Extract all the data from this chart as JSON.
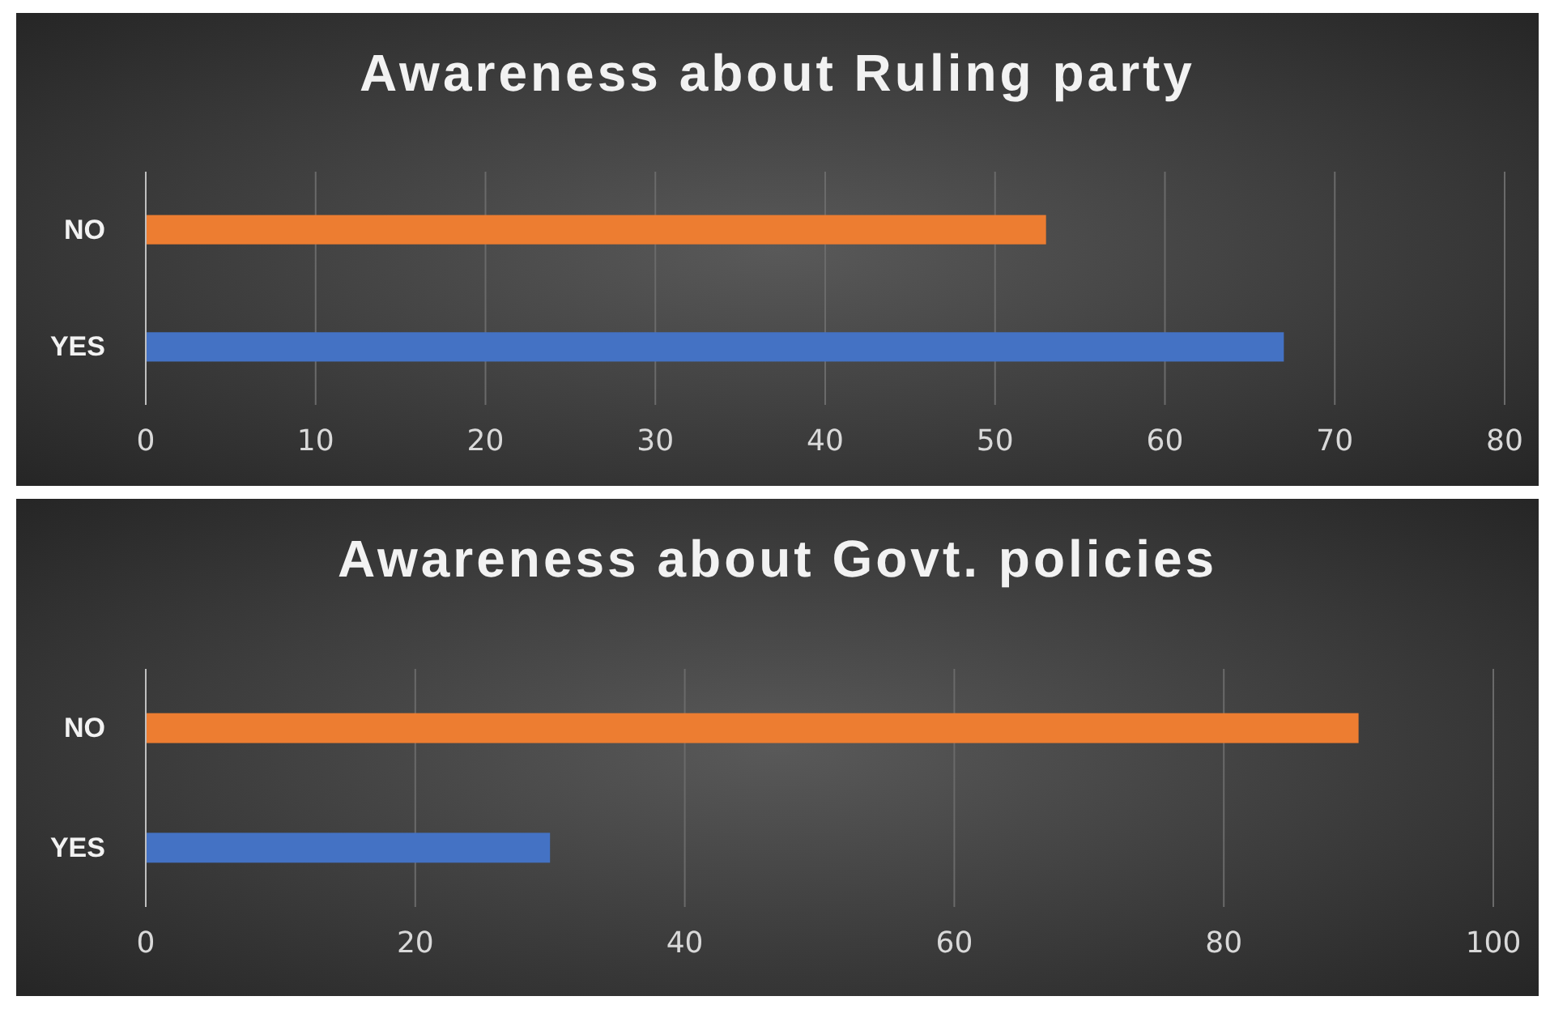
{
  "chart_data": [
    {
      "type": "bar",
      "orientation": "horizontal",
      "title": "Awareness about Ruling party",
      "categories": [
        "NO",
        "YES"
      ],
      "values": [
        53,
        67
      ],
      "colors": [
        "#ed7d31",
        "#4472c4"
      ],
      "xlim": [
        0,
        80
      ],
      "xticks": [
        0,
        10,
        20,
        30,
        40,
        50,
        60,
        70,
        80
      ],
      "grid": "x"
    },
    {
      "type": "bar",
      "orientation": "horizontal",
      "title": "Awareness about Govt. policies",
      "categories": [
        "NO",
        "YES"
      ],
      "values": [
        90,
        30
      ],
      "colors": [
        "#ed7d31",
        "#4472c4"
      ],
      "xlim": [
        0,
        100
      ],
      "xticks": [
        0,
        20,
        40,
        60,
        80,
        100
      ],
      "grid": "x"
    }
  ]
}
